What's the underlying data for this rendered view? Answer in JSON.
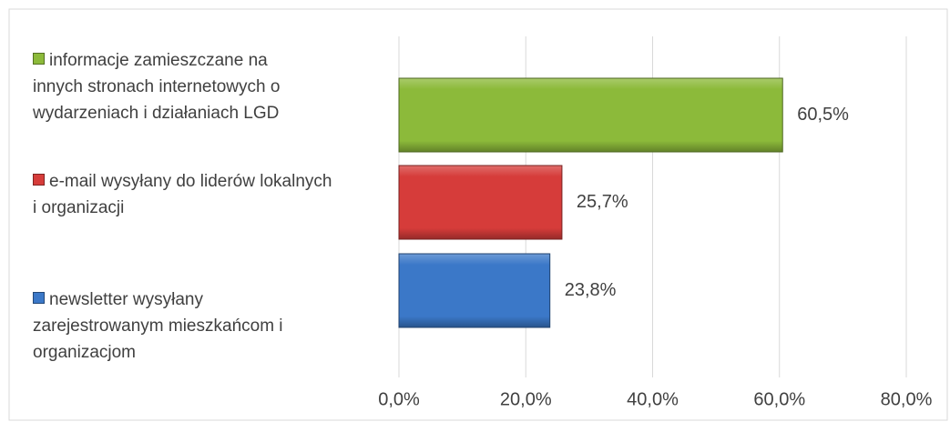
{
  "chart_data": {
    "type": "hbar",
    "categories": [
      "informacje zamieszczane na innych stronach internetowych o wydarzeniach i działaniach LGD",
      "e-mail wysyłany do liderów lokalnych i organizacji",
      "newsletter wysyłany zarejestrowanym mieszkańcom i organizacjom"
    ],
    "values": [
      60.5,
      25.7,
      23.8
    ],
    "value_labels": [
      "60,5%",
      "25,7%",
      "23,8%"
    ],
    "colors": [
      "#8cba3a",
      "#d63c3a",
      "#3b78c8"
    ],
    "xlim": [
      0,
      80
    ],
    "xticks": [
      {
        "value": 0,
        "label": "0,0%"
      },
      {
        "value": 20,
        "label": "20,0%"
      },
      {
        "value": 40,
        "label": "40,0%"
      },
      {
        "value": 60,
        "label": "60,0%"
      },
      {
        "value": 80,
        "label": "80,0%"
      }
    ],
    "grid": true
  }
}
